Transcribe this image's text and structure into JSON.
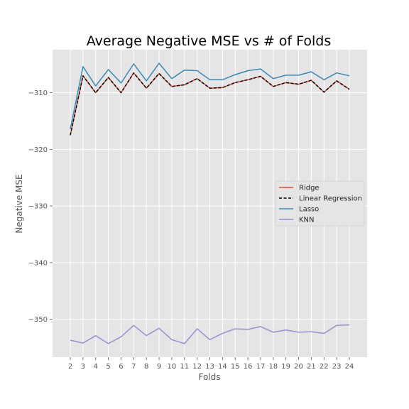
{
  "chart_data": {
    "type": "line",
    "title": "Average Negative MSE vs # of Folds",
    "xlabel": "Folds",
    "ylabel": "Negative MSE",
    "x": [
      2,
      3,
      4,
      5,
      6,
      7,
      8,
      9,
      10,
      11,
      12,
      13,
      14,
      15,
      16,
      17,
      18,
      19,
      20,
      21,
      22,
      23,
      24
    ],
    "xlim": [
      0.6,
      25.4
    ],
    "ylim": [
      -356.7,
      -302.4
    ],
    "yticks": [
      -310,
      -320,
      -330,
      -340,
      -350
    ],
    "ytick_labels": [
      "−310",
      "−320",
      "−330",
      "−340",
      "−350"
    ],
    "grid": true,
    "legend_position": "center-right",
    "series": [
      {
        "name": "Ridge",
        "color": "#E24A33",
        "style": "solid",
        "values": [
          -317.5,
          -307.0,
          -310.0,
          -307.3,
          -310.0,
          -306.5,
          -309.2,
          -306.6,
          -308.9,
          -308.6,
          -307.5,
          -309.2,
          -309.1,
          -308.2,
          -307.7,
          -307.1,
          -308.9,
          -308.2,
          -308.5,
          -307.8,
          -309.9,
          -307.9,
          -309.4
        ]
      },
      {
        "name": "Linear Regression",
        "color": "#000000",
        "style": "dashed",
        "values": [
          -317.5,
          -307.0,
          -310.0,
          -307.3,
          -310.0,
          -306.5,
          -309.2,
          -306.6,
          -308.9,
          -308.6,
          -307.5,
          -309.2,
          -309.1,
          -308.2,
          -307.7,
          -307.1,
          -308.9,
          -308.2,
          -308.5,
          -307.8,
          -309.9,
          -307.9,
          -309.4
        ]
      },
      {
        "name": "Lasso",
        "color": "#348ABD",
        "style": "solid",
        "values": [
          -316.4,
          -305.4,
          -308.8,
          -305.9,
          -308.3,
          -304.9,
          -307.9,
          -304.8,
          -307.5,
          -306.0,
          -306.1,
          -307.7,
          -307.7,
          -306.8,
          -306.1,
          -305.8,
          -307.5,
          -306.9,
          -306.9,
          -306.3,
          -307.7,
          -306.5,
          -307.0
        ]
      },
      {
        "name": "KNN",
        "color": "#988ED5",
        "style": "solid",
        "values": [
          -353.7,
          -354.2,
          -352.9,
          -354.3,
          -353.1,
          -351.1,
          -352.9,
          -351.6,
          -353.6,
          -354.3,
          -351.7,
          -353.6,
          -352.5,
          -351.7,
          -351.8,
          -351.3,
          -352.3,
          -351.9,
          -352.3,
          -352.2,
          -352.5,
          -351.1,
          -351.0
        ]
      }
    ]
  }
}
